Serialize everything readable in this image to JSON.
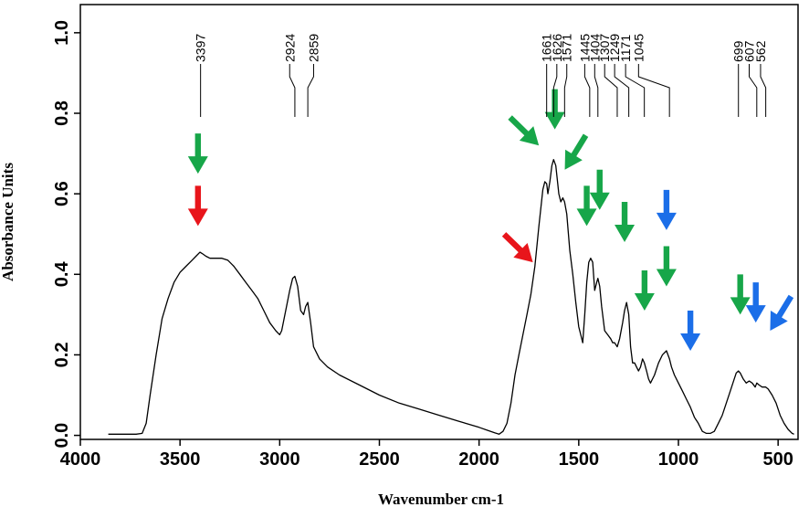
{
  "chart_data": {
    "type": "line",
    "title": "",
    "xlabel": "Wavenumber cm-1",
    "ylabel": "Absorbance Units",
    "x_reversed": true,
    "xlim": [
      4000,
      400
    ],
    "ylim": [
      0,
      1.05
    ],
    "x_ticks": [
      4000,
      3500,
      3000,
      2500,
      2000,
      1500,
      1000,
      500
    ],
    "x_tick_labels": [
      "4000",
      "3500",
      "3000",
      "2500",
      "2000",
      "1500",
      "1000",
      "500"
    ],
    "y_ticks": [
      0,
      0.2,
      0.4,
      0.6,
      0.8,
      1.0
    ],
    "y_tick_labels": [
      "0.0",
      "0.2",
      "0.4",
      "0.6",
      "0.8",
      "1.0"
    ],
    "grid": false,
    "series": [
      {
        "line_color": "#000000",
        "x": [
          3860,
          3800,
          3760,
          3720,
          3690,
          3670,
          3650,
          3620,
          3590,
          3560,
          3530,
          3500,
          3470,
          3440,
          3420,
          3400,
          3390,
          3370,
          3350,
          3320,
          3290,
          3260,
          3230,
          3200,
          3170,
          3140,
          3110,
          3080,
          3050,
          3020,
          3000,
          2990,
          2970,
          2950,
          2935,
          2924,
          2910,
          2895,
          2880,
          2870,
          2859,
          2845,
          2830,
          2800,
          2760,
          2700,
          2600,
          2500,
          2400,
          2300,
          2200,
          2100,
          2000,
          1960,
          1920,
          1900,
          1880,
          1860,
          1840,
          1820,
          1800,
          1780,
          1760,
          1740,
          1720,
          1700,
          1680,
          1670,
          1661,
          1655,
          1645,
          1635,
          1626,
          1615,
          1600,
          1590,
          1580,
          1571,
          1560,
          1545,
          1530,
          1515,
          1500,
          1490,
          1480,
          1470,
          1460,
          1450,
          1440,
          1430,
          1420,
          1410,
          1404,
          1395,
          1385,
          1370,
          1355,
          1340,
          1330,
          1320,
          1307,
          1295,
          1280,
          1270,
          1260,
          1249,
          1240,
          1230,
          1220,
          1210,
          1200,
          1190,
          1180,
          1171,
          1160,
          1150,
          1140,
          1120,
          1100,
          1080,
          1060,
          1045,
          1035,
          1020,
          1000,
          980,
          960,
          940,
          920,
          900,
          880,
          860,
          840,
          820,
          800,
          780,
          760,
          740,
          720,
          710,
          699,
          690,
          675,
          660,
          645,
          630,
          615,
          607,
          595,
          580,
          570,
          562,
          550,
          530,
          510,
          490,
          470,
          450,
          430,
          420
        ],
        "y": [
          0.003,
          0.003,
          0.003,
          0.003,
          0.005,
          0.03,
          0.1,
          0.2,
          0.29,
          0.34,
          0.38,
          0.405,
          0.42,
          0.435,
          0.445,
          0.455,
          0.452,
          0.445,
          0.44,
          0.44,
          0.44,
          0.435,
          0.42,
          0.4,
          0.38,
          0.36,
          0.34,
          0.31,
          0.28,
          0.26,
          0.25,
          0.26,
          0.31,
          0.36,
          0.39,
          0.395,
          0.37,
          0.31,
          0.3,
          0.32,
          0.33,
          0.28,
          0.22,
          0.19,
          0.17,
          0.15,
          0.125,
          0.1,
          0.08,
          0.065,
          0.05,
          0.035,
          0.02,
          0.013,
          0.006,
          0.003,
          0.01,
          0.03,
          0.08,
          0.15,
          0.2,
          0.25,
          0.3,
          0.35,
          0.42,
          0.52,
          0.61,
          0.63,
          0.625,
          0.6,
          0.63,
          0.67,
          0.685,
          0.67,
          0.6,
          0.58,
          0.59,
          0.58,
          0.55,
          0.46,
          0.4,
          0.33,
          0.27,
          0.25,
          0.23,
          0.3,
          0.38,
          0.43,
          0.44,
          0.43,
          0.36,
          0.38,
          0.39,
          0.37,
          0.32,
          0.26,
          0.25,
          0.24,
          0.23,
          0.23,
          0.22,
          0.24,
          0.28,
          0.31,
          0.33,
          0.3,
          0.22,
          0.18,
          0.18,
          0.17,
          0.16,
          0.17,
          0.19,
          0.18,
          0.16,
          0.14,
          0.13,
          0.15,
          0.18,
          0.2,
          0.21,
          0.19,
          0.17,
          0.15,
          0.13,
          0.11,
          0.09,
          0.07,
          0.045,
          0.03,
          0.01,
          0.005,
          0.005,
          0.01,
          0.03,
          0.05,
          0.08,
          0.11,
          0.14,
          0.155,
          0.16,
          0.155,
          0.14,
          0.13,
          0.135,
          0.13,
          0.12,
          0.13,
          0.125,
          0.12,
          0.12,
          0.12,
          0.115,
          0.1,
          0.08,
          0.05,
          0.03,
          0.015,
          0.005,
          0.003
        ]
      }
    ],
    "peak_labels": [
      "3397",
      "2924",
      "2859",
      "1661",
      "1626",
      "1571",
      "1445",
      "1404",
      "1307",
      "1249",
      "1171",
      "1045",
      "699",
      "607",
      "562"
    ],
    "peak_positions": [
      3397,
      2924,
      2859,
      1661,
      1626,
      1571,
      1445,
      1404,
      1307,
      1249,
      1171,
      1045,
      699,
      607,
      562
    ],
    "peak_label_positions": [
      3397,
      2950,
      2830,
      1661,
      1610,
      1560,
      1470,
      1420,
      1370,
      1320,
      1265,
      1200,
      699,
      645,
      588
    ],
    "arrow_colors": {
      "red": "#e8151b",
      "green": "#17a649",
      "blue": "#1b6ee8"
    },
    "arrows": [
      {
        "color": "red",
        "x": 3410,
        "y": 0.52,
        "dir": "down"
      },
      {
        "color": "green",
        "x": 3410,
        "y": 0.65,
        "dir": "down"
      },
      {
        "color": "red",
        "x": 1730,
        "y": 0.43,
        "dir": "down-right"
      },
      {
        "color": "green",
        "x": 1700,
        "y": 0.72,
        "dir": "down-right"
      },
      {
        "color": "green",
        "x": 1620,
        "y": 0.76,
        "dir": "down"
      },
      {
        "color": "green",
        "x": 1570,
        "y": 0.66,
        "dir": "down-left"
      },
      {
        "color": "green",
        "x": 1460,
        "y": 0.52,
        "dir": "down"
      },
      {
        "color": "green",
        "x": 1395,
        "y": 0.56,
        "dir": "down"
      },
      {
        "color": "green",
        "x": 1270,
        "y": 0.48,
        "dir": "down"
      },
      {
        "color": "green",
        "x": 1170,
        "y": 0.31,
        "dir": "down"
      },
      {
        "color": "green",
        "x": 1060,
        "y": 0.37,
        "dir": "down"
      },
      {
        "color": "blue",
        "x": 1060,
        "y": 0.51,
        "dir": "down"
      },
      {
        "color": "blue",
        "x": 940,
        "y": 0.21,
        "dir": "down"
      },
      {
        "color": "green",
        "x": 690,
        "y": 0.3,
        "dir": "down"
      },
      {
        "color": "blue",
        "x": 612,
        "y": 0.28,
        "dir": "down"
      },
      {
        "color": "blue",
        "x": 540,
        "y": 0.26,
        "dir": "down-left"
      }
    ]
  }
}
